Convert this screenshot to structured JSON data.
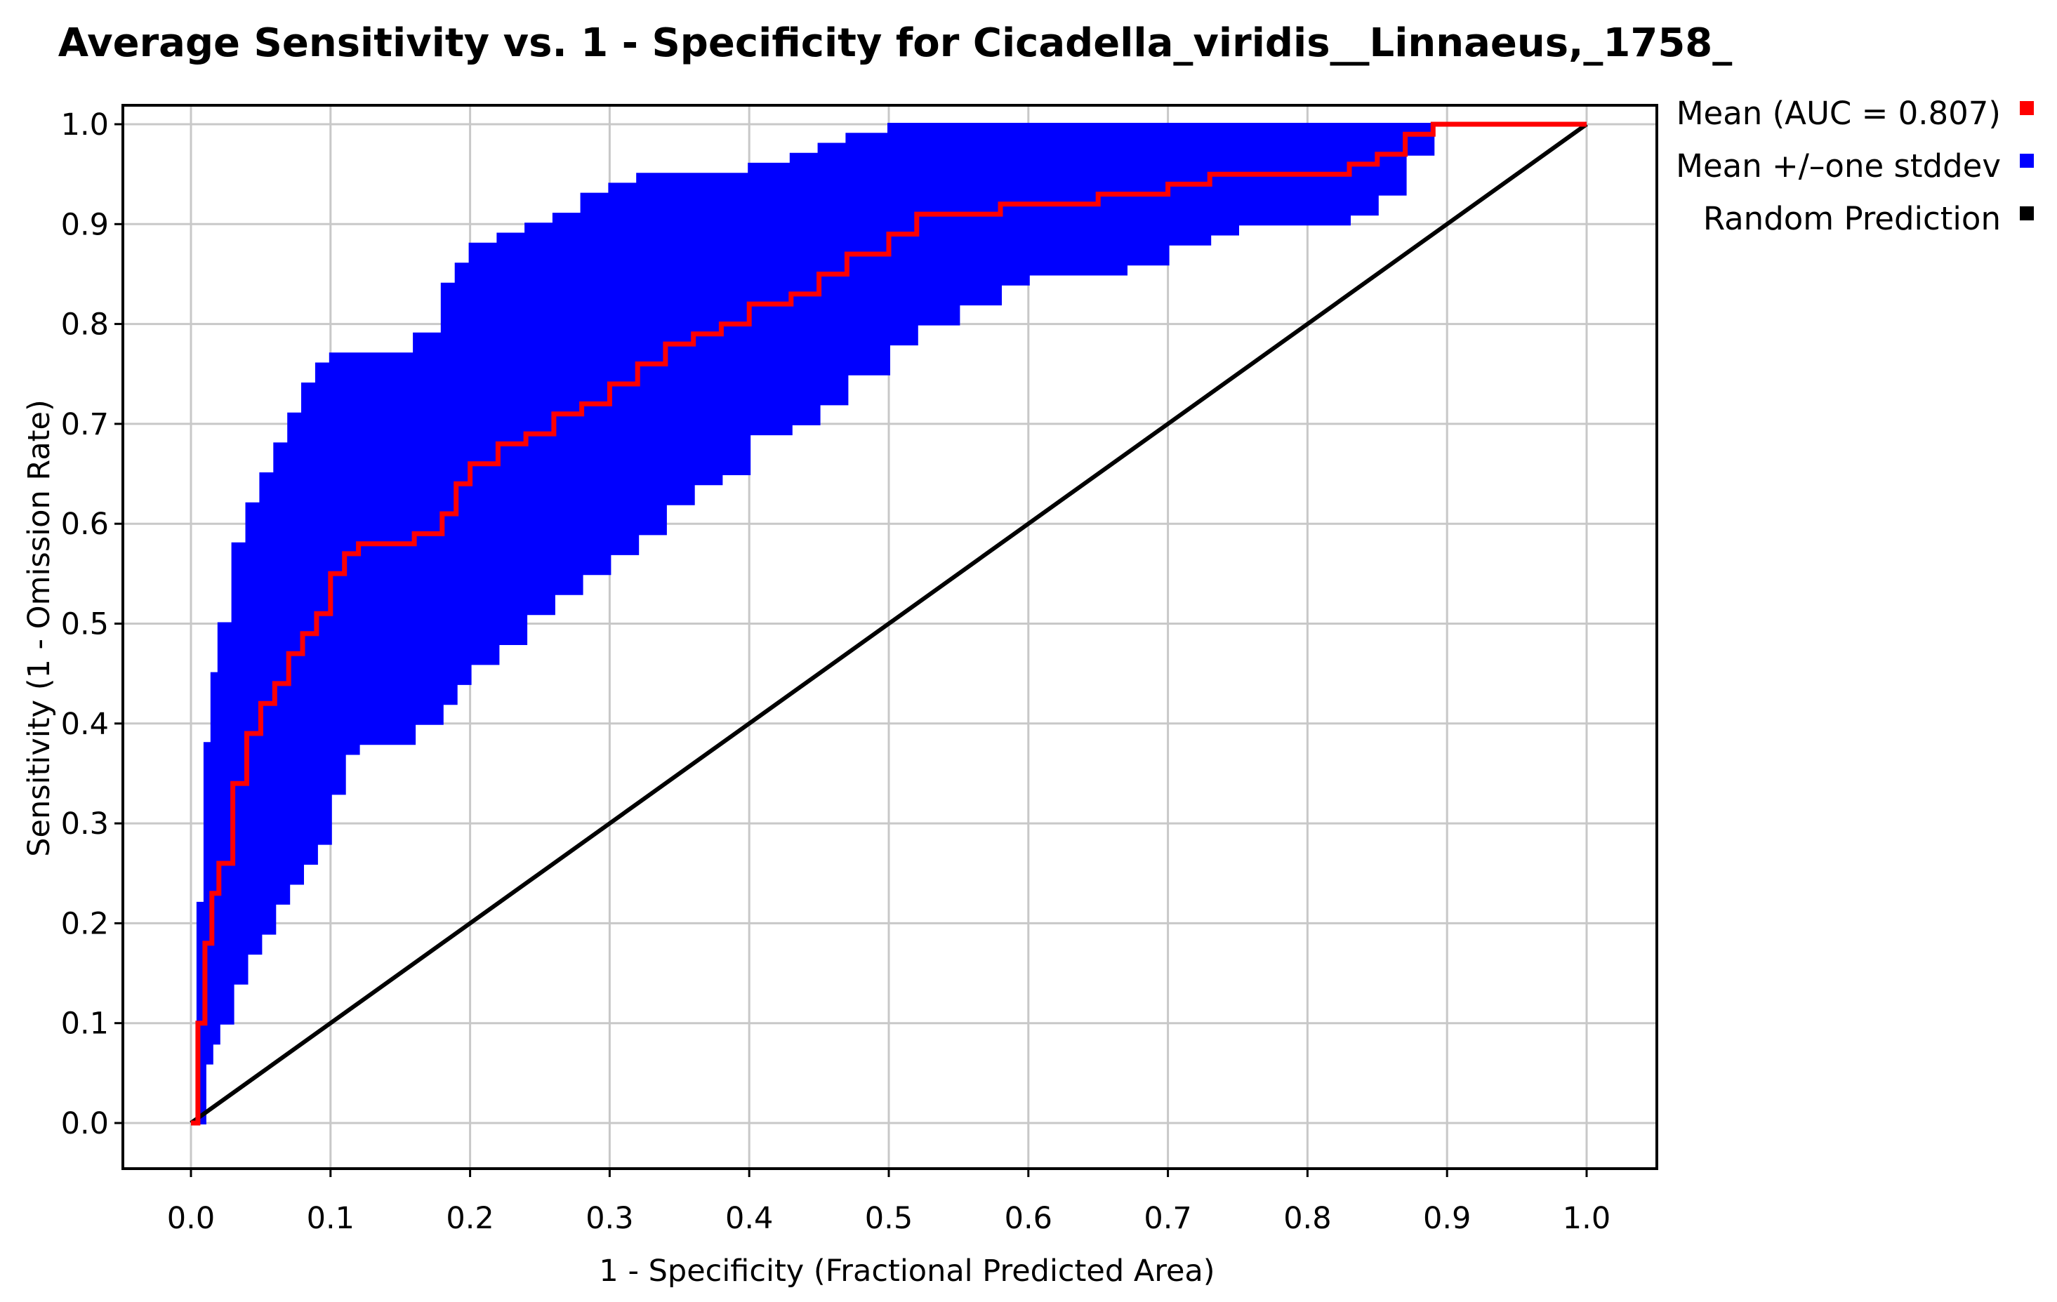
{
  "chart_data": {
    "type": "line",
    "title": "Average Sensitivity vs. 1 - Specificity for Cicadella_viridis__Linnaeus,_1758_",
    "xlabel": "1 - Specificity (Fractional Predicted Area)",
    "ylabel": "Sensitivity (1 - Omission Rate)",
    "xlim": [
      0.0,
      1.0
    ],
    "ylim": [
      0.0,
      1.0
    ],
    "xticks": [
      "0.0",
      "0.1",
      "0.2",
      "0.3",
      "0.4",
      "0.5",
      "0.6",
      "0.7",
      "0.8",
      "0.9",
      "1.0"
    ],
    "yticks": [
      "0.0",
      "0.1",
      "0.2",
      "0.3",
      "0.4",
      "0.5",
      "0.6",
      "0.7",
      "0.8",
      "0.9",
      "1.0"
    ],
    "grid": true,
    "legend_position": "right",
    "legend": [
      {
        "label": "Mean (AUC = 0.807)",
        "color": "#ff0000"
      },
      {
        "label": "Mean +/–one stddev",
        "color": "#0000ff"
      },
      {
        "label": "Random Prediction",
        "color": "#000000"
      }
    ],
    "series": [
      {
        "name": "Mean (AUC = 0.807)",
        "color": "#ff0000",
        "x": [
          0.0,
          0.005,
          0.01,
          0.015,
          0.02,
          0.03,
          0.04,
          0.05,
          0.06,
          0.07,
          0.08,
          0.09,
          0.1,
          0.11,
          0.12,
          0.15,
          0.16,
          0.18,
          0.19,
          0.2,
          0.22,
          0.24,
          0.26,
          0.28,
          0.3,
          0.32,
          0.34,
          0.36,
          0.38,
          0.4,
          0.43,
          0.45,
          0.47,
          0.5,
          0.52,
          0.55,
          0.58,
          0.6,
          0.65,
          0.67,
          0.7,
          0.73,
          0.75,
          0.8,
          0.83,
          0.85,
          0.87,
          0.89,
          0.95,
          1.0
        ],
        "y": [
          0.0,
          0.1,
          0.18,
          0.23,
          0.26,
          0.34,
          0.39,
          0.42,
          0.44,
          0.47,
          0.49,
          0.51,
          0.55,
          0.57,
          0.58,
          0.58,
          0.59,
          0.61,
          0.64,
          0.66,
          0.68,
          0.69,
          0.71,
          0.72,
          0.74,
          0.76,
          0.78,
          0.79,
          0.8,
          0.82,
          0.83,
          0.85,
          0.87,
          0.89,
          0.91,
          0.91,
          0.92,
          0.92,
          0.93,
          0.93,
          0.94,
          0.95,
          0.95,
          0.95,
          0.96,
          0.97,
          0.99,
          1.0,
          1.0,
          1.0
        ]
      },
      {
        "name": "Mean +/–one stddev",
        "color": "#0000ff",
        "x": [
          0.0,
          0.005,
          0.01,
          0.015,
          0.02,
          0.03,
          0.04,
          0.05,
          0.06,
          0.07,
          0.08,
          0.09,
          0.1,
          0.11,
          0.12,
          0.15,
          0.16,
          0.18,
          0.19,
          0.2,
          0.22,
          0.24,
          0.26,
          0.28,
          0.3,
          0.32,
          0.34,
          0.36,
          0.38,
          0.4,
          0.43,
          0.45,
          0.47,
          0.5,
          0.52,
          0.55,
          0.58,
          0.6,
          0.65,
          0.67,
          0.7,
          0.73,
          0.75,
          0.8,
          0.83,
          0.85,
          0.87,
          0.89,
          0.95,
          1.0
        ],
        "upper": [
          0.0,
          0.22,
          0.38,
          0.45,
          0.5,
          0.58,
          0.62,
          0.65,
          0.68,
          0.71,
          0.74,
          0.76,
          0.77,
          0.77,
          0.77,
          0.77,
          0.79,
          0.84,
          0.86,
          0.88,
          0.89,
          0.9,
          0.91,
          0.93,
          0.94,
          0.95,
          0.95,
          0.95,
          0.95,
          0.96,
          0.97,
          0.98,
          0.99,
          1.0,
          1.0,
          1.0,
          1.0,
          1.0,
          1.0,
          1.0,
          1.0,
          1.0,
          1.0,
          1.0,
          1.0,
          1.0,
          1.0,
          1.0,
          1.0,
          1.0
        ],
        "lower": [
          0.0,
          0.0,
          0.06,
          0.08,
          0.1,
          0.14,
          0.17,
          0.19,
          0.22,
          0.24,
          0.26,
          0.28,
          0.33,
          0.37,
          0.38,
          0.38,
          0.4,
          0.42,
          0.44,
          0.46,
          0.48,
          0.51,
          0.53,
          0.55,
          0.57,
          0.59,
          0.62,
          0.64,
          0.65,
          0.69,
          0.7,
          0.72,
          0.75,
          0.78,
          0.8,
          0.82,
          0.84,
          0.85,
          0.85,
          0.86,
          0.88,
          0.89,
          0.9,
          0.9,
          0.91,
          0.93,
          0.97,
          1.0,
          1.0,
          1.0
        ]
      },
      {
        "name": "Random Prediction",
        "color": "#000000",
        "x": [
          0.0,
          1.0
        ],
        "y": [
          0.0,
          1.0
        ]
      }
    ]
  }
}
